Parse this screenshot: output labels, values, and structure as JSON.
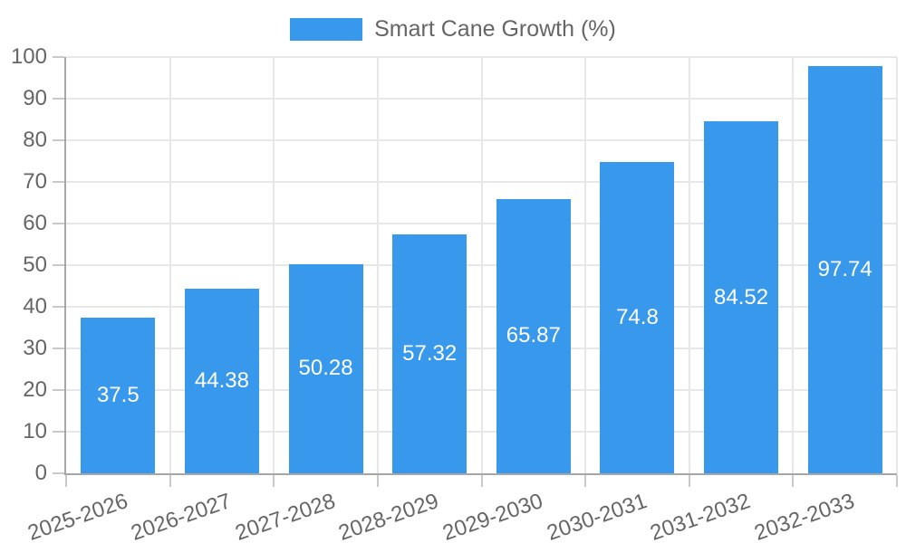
{
  "legend": {
    "label": "Smart Cane Growth (%)"
  },
  "colors": {
    "bar": "#3898EC",
    "axis_text": "#666666",
    "value_label": "#FFFFFF",
    "grid": "#E7E7E7",
    "tick": "#C9C9C9",
    "axis_line": "#A6A6A6",
    "background": "#FFFFFF"
  },
  "chart_data": {
    "type": "bar",
    "title": "",
    "categories": [
      "2025-2026",
      "2026-2027",
      "2027-2028",
      "2028-2029",
      "2029-2030",
      "2030-2031",
      "2031-2032",
      "2032-2033"
    ],
    "series": [
      {
        "name": "Smart Cane Growth (%)",
        "values": [
          37.5,
          44.38,
          50.28,
          57.32,
          65.87,
          74.8,
          84.52,
          97.74
        ]
      }
    ],
    "value_labels": [
      "37.5",
      "44.38",
      "50.28",
      "57.32",
      "65.87",
      "74.8",
      "84.52",
      "97.74"
    ],
    "ylim": [
      0,
      100
    ],
    "y_ticks": [
      0,
      10,
      20,
      30,
      40,
      50,
      60,
      70,
      80,
      90,
      100
    ],
    "grid": true,
    "legend_position": "top",
    "bar_labels_inside": true,
    "x_tick_rotation_deg": -19
  }
}
